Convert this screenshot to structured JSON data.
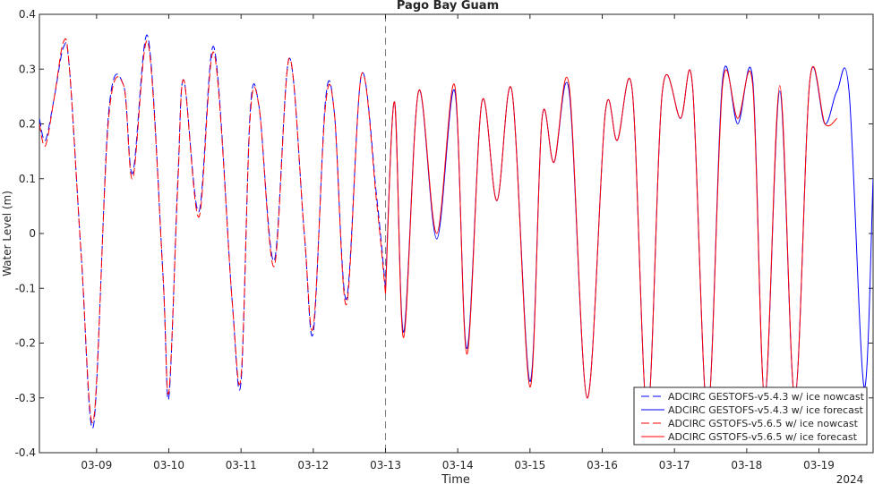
{
  "chart_data": {
    "type": "line",
    "title": "Pago Bay Guam",
    "xlabel": "Time",
    "ylabel": "Water Level (m)",
    "year_label": "2024",
    "ylim": [
      -0.4,
      0.4
    ],
    "yticks": [
      -0.4,
      -0.3,
      -0.2,
      -0.1,
      0,
      0.1,
      0.2,
      0.3,
      0.4
    ],
    "ytick_labels": [
      "-0.4",
      "-0.3",
      "-0.2",
      "-0.1",
      "0",
      "0.1",
      "0.2",
      "0.3",
      "0.4"
    ],
    "xlim": [
      "2024-03-08 05:00",
      "2024-03-19 18:00"
    ],
    "xticks": [
      "03-09",
      "03-10",
      "03-11",
      "03-12",
      "03-13",
      "03-14",
      "03-15",
      "03-16",
      "03-17",
      "03-18",
      "03-19"
    ],
    "nowcast_end": "2024-03-13 00:00",
    "grid": false,
    "legend_position": "bottom-right",
    "colors": {
      "blue": "#0000ff",
      "red": "#ff0000",
      "divider": "#808080",
      "axis": "#262626"
    },
    "series": [
      {
        "name": "ADCIRC GESTOFS-v5.4.3 w/ ice nowcast",
        "color": "#0000ff",
        "style": "dashed",
        "x": [
          "2024-03-08 05:00",
          "2024-03-08 07:00",
          "2024-03-08 10:00",
          "2024-03-08 13:00",
          "2024-03-08 15:00",
          "2024-03-08 19:00",
          "2024-03-08 23:00",
          "2024-03-09 04:00",
          "2024-03-09 09:00",
          "2024-03-09 12:00",
          "2024-03-09 17:00",
          "2024-03-09 22:00",
          "2024-03-10 00:00",
          "2024-03-10 03:00",
          "2024-03-10 05:00",
          "2024-03-10 10:00",
          "2024-03-10 15:00",
          "2024-03-10 21:00",
          "2024-03-11 00:00",
          "2024-03-11 03:00",
          "2024-03-11 06:00",
          "2024-03-11 11:00",
          "2024-03-11 16:00",
          "2024-03-11 21:00",
          "2024-03-12 00:00",
          "2024-03-12 04:00",
          "2024-03-12 07:00",
          "2024-03-12 11:00",
          "2024-03-12 16:00",
          "2024-03-12 21:00",
          "2024-03-13 00:00"
        ],
        "y": [
          0.21,
          0.17,
          0.25,
          0.34,
          0.3,
          -0.05,
          -0.35,
          0.22,
          0.27,
          0.11,
          0.36,
          -0.07,
          -0.3,
          0.1,
          0.28,
          0.04,
          0.34,
          -0.12,
          -0.27,
          0.22,
          0.23,
          -0.05,
          0.32,
          0.0,
          -0.18,
          0.24,
          0.22,
          -0.12,
          0.29,
          0.07,
          -0.1
        ]
      },
      {
        "name": "ADCIRC GESTOFS-v5.4.3 w/ ice forecast",
        "color": "#0000ff",
        "style": "solid",
        "x": [
          "2024-03-13 00:00",
          "2024-03-13 03:00",
          "2024-03-13 06:00",
          "2024-03-13 11:00",
          "2024-03-13 17:00",
          "2024-03-13 23:00",
          "2024-03-14 03:00",
          "2024-03-14 08:00",
          "2024-03-14 13:00",
          "2024-03-14 18:00",
          "2024-03-15 00:00",
          "2024-03-15 04:00",
          "2024-03-15 08:00",
          "2024-03-15 13:00",
          "2024-03-15 19:00",
          "2024-03-16 01:00",
          "2024-03-16 05:00",
          "2024-03-16 10:00",
          "2024-03-16 15:00",
          "2024-03-16 20:00",
          "2024-03-17 02:00",
          "2024-03-17 06:00",
          "2024-03-17 11:00",
          "2024-03-17 16:00",
          "2024-03-17 21:00",
          "2024-03-18 02:00",
          "2024-03-18 06:00",
          "2024-03-18 11:00",
          "2024-03-18 16:00",
          "2024-03-18 21:00",
          "2024-03-19 02:00",
          "2024-03-19 06:00",
          "2024-03-19 10:00",
          "2024-03-19 15:00",
          "2024-03-19 18:00"
        ],
        "y": [
          -0.1,
          0.24,
          -0.18,
          0.26,
          -0.01,
          0.26,
          -0.21,
          0.24,
          0.06,
          0.26,
          -0.27,
          0.21,
          0.13,
          0.26,
          -0.3,
          0.22,
          0.17,
          0.26,
          -0.33,
          0.26,
          0.21,
          0.27,
          -0.33,
          0.28,
          0.2,
          0.28,
          -0.3,
          0.26,
          -0.3,
          0.28,
          0.2,
          0.26,
          0.26,
          -0.28,
          0.1
        ]
      },
      {
        "name": "ADCIRC GSTOFS-v5.6.5 w/ ice nowcast",
        "color": "#ff0000",
        "style": "dashed",
        "x": [
          "2024-03-08 05:00",
          "2024-03-08 07:00",
          "2024-03-08 10:00",
          "2024-03-08 13:00",
          "2024-03-08 15:00",
          "2024-03-08 19:00",
          "2024-03-08 23:00",
          "2024-03-09 04:00",
          "2024-03-09 09:00",
          "2024-03-09 12:00",
          "2024-03-09 17:00",
          "2024-03-09 22:00",
          "2024-03-10 00:00",
          "2024-03-10 03:00",
          "2024-03-10 05:00",
          "2024-03-10 10:00",
          "2024-03-10 15:00",
          "2024-03-10 21:00",
          "2024-03-11 00:00",
          "2024-03-11 03:00",
          "2024-03-11 06:00",
          "2024-03-11 11:00",
          "2024-03-11 16:00",
          "2024-03-11 21:00",
          "2024-03-12 00:00",
          "2024-03-12 04:00",
          "2024-03-12 07:00",
          "2024-03-12 11:00",
          "2024-03-12 16:00",
          "2024-03-12 21:00",
          "2024-03-13 00:00"
        ],
        "y": [
          0.2,
          0.16,
          0.25,
          0.35,
          0.3,
          -0.05,
          -0.34,
          0.21,
          0.27,
          0.1,
          0.35,
          -0.07,
          -0.29,
          0.09,
          0.28,
          0.03,
          0.33,
          -0.12,
          -0.26,
          0.21,
          0.23,
          -0.06,
          0.32,
          0.0,
          -0.17,
          0.23,
          0.22,
          -0.13,
          0.29,
          0.06,
          -0.11
        ]
      },
      {
        "name": "ADCIRC GSTOFS-v5.6.5 w/ ice forecast",
        "color": "#ff0000",
        "style": "solid",
        "x": [
          "2024-03-13 00:00",
          "2024-03-13 03:00",
          "2024-03-13 06:00",
          "2024-03-13 11:00",
          "2024-03-13 17:00",
          "2024-03-13 23:00",
          "2024-03-14 03:00",
          "2024-03-14 08:00",
          "2024-03-14 13:00",
          "2024-03-14 18:00",
          "2024-03-15 00:00",
          "2024-03-15 04:00",
          "2024-03-15 08:00",
          "2024-03-15 13:00",
          "2024-03-15 19:00",
          "2024-03-16 01:00",
          "2024-03-16 05:00",
          "2024-03-16 10:00",
          "2024-03-16 15:00",
          "2024-03-16 20:00",
          "2024-03-17 02:00",
          "2024-03-17 06:00",
          "2024-03-17 11:00",
          "2024-03-17 16:00",
          "2024-03-17 21:00",
          "2024-03-18 02:00",
          "2024-03-18 06:00",
          "2024-03-18 11:00",
          "2024-03-18 16:00",
          "2024-03-18 21:00",
          "2024-03-19 02:00",
          "2024-03-19 06:00"
        ],
        "y": [
          -0.11,
          0.24,
          -0.19,
          0.26,
          0.0,
          0.27,
          -0.22,
          0.24,
          0.06,
          0.26,
          -0.28,
          0.21,
          0.13,
          0.27,
          -0.3,
          0.22,
          0.17,
          0.26,
          -0.33,
          0.26,
          0.21,
          0.27,
          -0.33,
          0.27,
          0.21,
          0.27,
          -0.3,
          0.27,
          -0.3,
          0.28,
          0.2,
          0.21
        ]
      }
    ]
  }
}
